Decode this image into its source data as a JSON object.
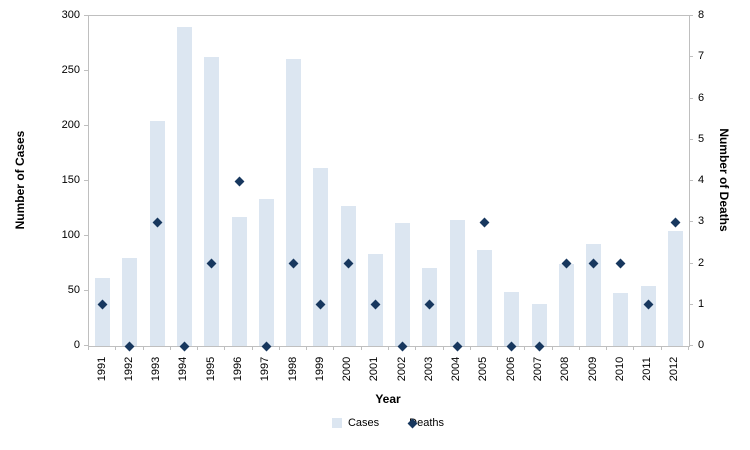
{
  "chart_data": {
    "type": "bar",
    "title": "",
    "xlabel": "Year",
    "ylabel_left": "Number of Cases",
    "ylabel_right": "Number of Deaths",
    "ylim_left": [
      0,
      300
    ],
    "ytick_step_left": 50,
    "ylim_right": [
      0,
      8
    ],
    "ytick_step_right": 1,
    "grid": false,
    "legend_position": "bottom",
    "categories": [
      "1991",
      "1992",
      "1993",
      "1994",
      "1995",
      "1996",
      "1997",
      "1998",
      "1999",
      "2000",
      "2001",
      "2002",
      "2003",
      "2004",
      "2005",
      "2006",
      "2007",
      "2008",
      "2009",
      "2010",
      "2011",
      "2012"
    ],
    "series": [
      {
        "name": "Cases",
        "type": "bar",
        "axis": "left",
        "color": "#dce6f1",
        "values": [
          62,
          80,
          205,
          290,
          263,
          117,
          134,
          261,
          162,
          127,
          84,
          112,
          71,
          115,
          87,
          49,
          38,
          75,
          93,
          48,
          55,
          105
        ]
      },
      {
        "name": "Deaths",
        "type": "scatter",
        "marker": "diamond",
        "axis": "right",
        "color": "#17375e",
        "values": [
          1,
          0,
          3,
          0,
          2,
          4,
          0,
          2,
          1,
          2,
          1,
          0,
          1,
          0,
          3,
          0,
          0,
          2,
          2,
          2,
          1,
          3
        ]
      }
    ],
    "legend": [
      {
        "label": "Cases",
        "marker": "square"
      },
      {
        "label": "Deaths",
        "marker": "diamond"
      }
    ]
  }
}
